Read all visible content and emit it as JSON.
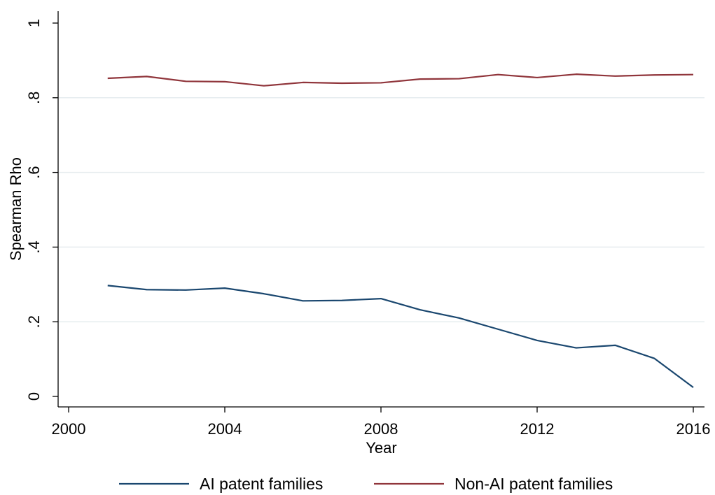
{
  "chart_data": {
    "type": "line",
    "title": "",
    "xlabel": "Year",
    "ylabel": "Spearman Rho",
    "xlim": [
      2000,
      2016
    ],
    "ylim": [
      0,
      1
    ],
    "xticks": [
      2000,
      2004,
      2008,
      2012,
      2016
    ],
    "xtick_labels": [
      "2000",
      "2004",
      "2008",
      "2012",
      "2016"
    ],
    "yticks": [
      0,
      0.2,
      0.4,
      0.6,
      0.8,
      1
    ],
    "ytick_labels": [
      "0",
      ".2",
      ".4",
      ".6",
      ".8",
      "1"
    ],
    "grid": "horizontal",
    "legend_position": "bottom",
    "x": [
      2001,
      2002,
      2003,
      2004,
      2005,
      2006,
      2007,
      2008,
      2009,
      2010,
      2011,
      2012,
      2013,
      2014,
      2015,
      2016
    ],
    "series": [
      {
        "name": "AI patent families",
        "color": "#1a476f",
        "values": [
          0.297,
          0.286,
          0.285,
          0.29,
          0.275,
          0.256,
          0.257,
          0.262,
          0.232,
          0.21,
          0.18,
          0.15,
          0.13,
          0.137,
          0.102,
          0.024
        ]
      },
      {
        "name": "Non-AI patent families",
        "color": "#90353b",
        "values": [
          0.852,
          0.857,
          0.844,
          0.843,
          0.832,
          0.841,
          0.839,
          0.84,
          0.85,
          0.851,
          0.862,
          0.854,
          0.863,
          0.858,
          0.861,
          0.862
        ]
      }
    ]
  }
}
